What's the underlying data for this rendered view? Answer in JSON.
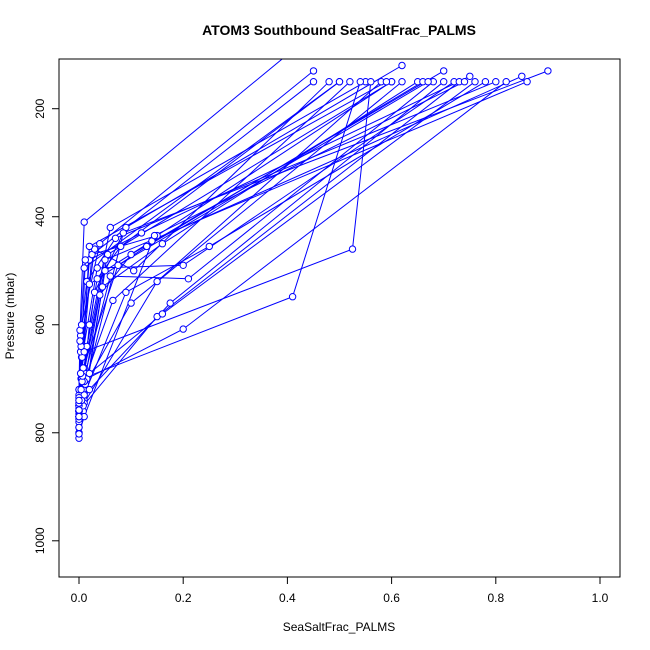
{
  "chart_data": {
    "type": "line",
    "title": "ATOM3 Southbound SeaSaltFrac_PALMS",
    "xlabel": "SeaSaltFrac_PALMS",
    "ylabel": "Pressure (mbar)",
    "xlim": [
      0,
      1
    ],
    "ylim": [
      1030,
      145
    ],
    "y_reversed": true,
    "x_ticks": [
      0.0,
      0.2,
      0.4,
      0.6,
      0.8,
      1.0
    ],
    "x_tick_labels": [
      "0.0",
      "0.2",
      "0.4",
      "0.6",
      "0.8",
      "1.0"
    ],
    "y_ticks": [
      200,
      400,
      600,
      800,
      1000
    ],
    "y_tick_labels": [
      "200",
      "400",
      "600",
      "800",
      "1000"
    ],
    "grid": false,
    "series_color": "#0000ff",
    "series": [
      {
        "points": [
          [
            0.0,
            770
          ],
          [
            0.01,
            700
          ],
          [
            0.02,
            600
          ],
          [
            0.035,
            515
          ],
          [
            0.08,
            455
          ],
          [
            0.5,
            150
          ]
        ]
      },
      {
        "points": [
          [
            0.0,
            760
          ],
          [
            0.01,
            680
          ],
          [
            0.03,
            540
          ],
          [
            0.09,
            420
          ],
          [
            0.62,
            120
          ]
        ]
      },
      {
        "points": [
          [
            0.0,
            800
          ],
          [
            0.008,
            720
          ],
          [
            0.04,
            545
          ],
          [
            0.1,
            470
          ],
          [
            0.7,
            130
          ]
        ]
      },
      {
        "points": [
          [
            0.0,
            750
          ],
          [
            0.015,
            640
          ],
          [
            0.06,
            420
          ],
          [
            0.55,
            150
          ]
        ]
      },
      {
        "points": [
          [
            0.0,
            740
          ],
          [
            0.005,
            660
          ],
          [
            0.02,
            480
          ],
          [
            0.12,
            430
          ],
          [
            0.75,
            140
          ]
        ]
      },
      {
        "points": [
          [
            0.0,
            730
          ],
          [
            0.003,
            620
          ],
          [
            0.015,
            520
          ],
          [
            0.07,
            440
          ],
          [
            0.8,
            150
          ]
        ]
      },
      {
        "points": [
          [
            0.0,
            810
          ],
          [
            0.008,
            760
          ],
          [
            0.05,
            500
          ],
          [
            0.14,
            445
          ],
          [
            0.85,
            140
          ]
        ]
      },
      {
        "points": [
          [
            0.0,
            720
          ],
          [
            0.002,
            610
          ],
          [
            0.01,
            410
          ],
          [
            0.4,
            100
          ]
        ]
      },
      {
        "points": [
          [
            0.0,
            770
          ],
          [
            0.004,
            700
          ],
          [
            0.025,
            470
          ],
          [
            0.15,
            435
          ],
          [
            0.6,
            150
          ]
        ]
      },
      {
        "points": [
          [
            0.0,
            790
          ],
          [
            0.01,
            740
          ],
          [
            0.045,
            530
          ],
          [
            0.16,
            450
          ],
          [
            0.65,
            150
          ]
        ]
      },
      {
        "points": [
          [
            0.0,
            750
          ],
          [
            0.006,
            660
          ],
          [
            0.035,
            495
          ],
          [
            0.2,
            490
          ],
          [
            0.72,
            150
          ]
        ]
      },
      {
        "points": [
          [
            0.0,
            760
          ],
          [
            0.01,
            730
          ],
          [
            0.09,
            540
          ],
          [
            0.25,
            455
          ],
          [
            0.78,
            150
          ]
        ]
      },
      {
        "points": [
          [
            0.0,
            770
          ],
          [
            0.012,
            690
          ],
          [
            0.06,
            510
          ],
          [
            0.21,
            515
          ],
          [
            0.68,
            150
          ]
        ]
      },
      {
        "points": [
          [
            0.0,
            745
          ],
          [
            0.005,
            600
          ],
          [
            0.04,
            450
          ],
          [
            0.45,
            130
          ]
        ]
      },
      {
        "points": [
          [
            0.0,
            770
          ],
          [
            0.01,
            745
          ],
          [
            0.15,
            520
          ],
          [
            0.58,
            150
          ]
        ]
      },
      {
        "points": [
          [
            0.0,
            755
          ],
          [
            0.02,
            720
          ],
          [
            0.175,
            560
          ],
          [
            0.7,
            150
          ]
        ]
      },
      {
        "points": [
          [
            0.0,
            760
          ],
          [
            0.015,
            700
          ],
          [
            0.2,
            608
          ],
          [
            0.82,
            150
          ]
        ]
      },
      {
        "points": [
          [
            0.0,
            780
          ],
          [
            0.008,
            750
          ],
          [
            0.15,
            585
          ],
          [
            0.73,
            150
          ]
        ]
      },
      {
        "points": [
          [
            0.0,
            765
          ],
          [
            0.012,
            710
          ],
          [
            0.1,
            560
          ],
          [
            0.62,
            150
          ]
        ]
      },
      {
        "points": [
          [
            0.0,
            735
          ],
          [
            0.003,
            650
          ],
          [
            0.02,
            525
          ],
          [
            0.13,
            455
          ],
          [
            0.66,
            150
          ]
        ]
      },
      {
        "points": [
          [
            0.0,
            770
          ],
          [
            0.02,
            690
          ],
          [
            0.16,
            580
          ],
          [
            0.76,
            150
          ]
        ]
      },
      {
        "points": [
          [
            0.0,
            760
          ],
          [
            0.005,
            700
          ],
          [
            0.41,
            548
          ],
          [
            0.54,
            150
          ]
        ]
      },
      {
        "points": [
          [
            0.0,
            720
          ],
          [
            0.01,
            650
          ],
          [
            0.525,
            460
          ],
          [
            0.56,
            150
          ]
        ]
      },
      {
        "points": [
          [
            0.0,
            790
          ],
          [
            0.01,
            705
          ],
          [
            0.065,
            555
          ],
          [
            0.52,
            150
          ]
        ]
      },
      {
        "points": [
          [
            0.0,
            750
          ],
          [
            0.004,
            640
          ],
          [
            0.03,
            460
          ],
          [
            0.105,
            500
          ],
          [
            0.48,
            150
          ]
        ]
      },
      {
        "points": [
          [
            0.0,
            775
          ],
          [
            0.006,
            705
          ],
          [
            0.055,
            470
          ],
          [
            0.6,
            150
          ]
        ]
      },
      {
        "points": [
          [
            0.0,
            760
          ],
          [
            0.008,
            680
          ],
          [
            0.075,
            490
          ],
          [
            0.67,
            150
          ]
        ]
      },
      {
        "points": [
          [
            0.0,
            745
          ],
          [
            0.002,
            630
          ],
          [
            0.01,
            495
          ],
          [
            0.5,
            150
          ]
        ]
      },
      {
        "points": [
          [
            0.0,
            770
          ],
          [
            0.005,
            740
          ],
          [
            0.085,
            430
          ],
          [
            0.9,
            130
          ]
        ]
      },
      {
        "points": [
          [
            0.0,
            758
          ],
          [
            0.007,
            695
          ],
          [
            0.05,
            480
          ],
          [
            0.86,
            150
          ]
        ]
      },
      {
        "points": [
          [
            0.0,
            802
          ],
          [
            0.01,
            770
          ],
          [
            0.145,
            435
          ],
          [
            0.74,
            150
          ]
        ]
      },
      {
        "points": [
          [
            0.0,
            770
          ],
          [
            0.004,
            720
          ],
          [
            0.02,
            455
          ],
          [
            0.59,
            150
          ]
        ]
      },
      {
        "points": [
          [
            0.0,
            740
          ],
          [
            0.003,
            690
          ],
          [
            0.012,
            480
          ],
          [
            0.45,
            150
          ]
        ]
      }
    ]
  }
}
